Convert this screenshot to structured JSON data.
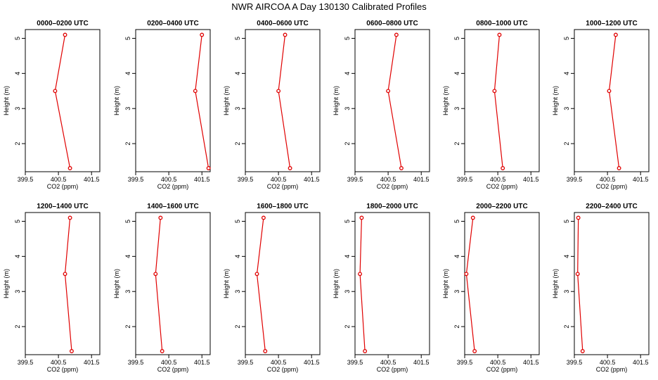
{
  "figure": {
    "title": "NWR AIRCOA A  Day 130130  Calibrated Profiles"
  },
  "chart_data": [
    {
      "type": "line",
      "title": "0000–0200 UTC",
      "xlabel": "CO2 (ppm)",
      "ylabel": "Height (m)",
      "xlim": [
        399.5,
        401.75
      ],
      "ylim": [
        1.2,
        5.25
      ],
      "x_ticks": [
        399.5,
        400.5,
        401.5
      ],
      "y_ticks": [
        2,
        3,
        4,
        5
      ],
      "heights": [
        1.3,
        3.5,
        5.1
      ],
      "values": [
        400.85,
        400.4,
        400.7
      ]
    },
    {
      "type": "line",
      "title": "0200–0400 UTC",
      "xlabel": "CO2 (ppm)",
      "ylabel": "Height (m)",
      "xlim": [
        399.5,
        401.75
      ],
      "ylim": [
        1.2,
        5.25
      ],
      "x_ticks": [
        399.5,
        400.5,
        401.5
      ],
      "y_ticks": [
        2,
        3,
        4,
        5
      ],
      "heights": [
        1.3,
        3.5,
        5.1
      ],
      "values": [
        401.7,
        401.3,
        401.5
      ]
    },
    {
      "type": "line",
      "title": "0400–0600 UTC",
      "xlabel": "CO2 (ppm)",
      "ylabel": "Height (m)",
      "xlim": [
        399.5,
        401.75
      ],
      "ylim": [
        1.2,
        5.25
      ],
      "x_ticks": [
        399.5,
        400.5,
        401.5
      ],
      "y_ticks": [
        2,
        3,
        4,
        5
      ],
      "heights": [
        1.3,
        3.5,
        5.1
      ],
      "values": [
        400.85,
        400.5,
        400.7
      ]
    },
    {
      "type": "line",
      "title": "0600–0800 UTC",
      "xlabel": "CO2 (ppm)",
      "ylabel": "Height (m)",
      "xlim": [
        399.5,
        401.75
      ],
      "ylim": [
        1.2,
        5.25
      ],
      "x_ticks": [
        399.5,
        400.5,
        401.5
      ],
      "y_ticks": [
        2,
        3,
        4,
        5
      ],
      "heights": [
        1.3,
        3.5,
        5.1
      ],
      "values": [
        400.9,
        400.5,
        400.75
      ]
    },
    {
      "type": "line",
      "title": "0800–1000 UTC",
      "xlabel": "CO2 (ppm)",
      "ylabel": "Height (m)",
      "xlim": [
        399.5,
        401.75
      ],
      "ylim": [
        1.2,
        5.25
      ],
      "x_ticks": [
        399.5,
        400.5,
        401.5
      ],
      "y_ticks": [
        2,
        3,
        4,
        5
      ],
      "heights": [
        1.3,
        3.5,
        5.1
      ],
      "values": [
        400.65,
        400.4,
        400.55
      ]
    },
    {
      "type": "line",
      "title": "1000–1200 UTC",
      "xlabel": "CO2 (ppm)",
      "ylabel": "Height (m)",
      "xlim": [
        399.5,
        401.75
      ],
      "ylim": [
        1.2,
        5.25
      ],
      "x_ticks": [
        399.5,
        400.5,
        401.5
      ],
      "y_ticks": [
        2,
        3,
        4,
        5
      ],
      "heights": [
        1.3,
        3.5,
        5.1
      ],
      "values": [
        400.85,
        400.55,
        400.75
      ]
    },
    {
      "type": "line",
      "title": "1200–1400 UTC",
      "xlabel": "CO2 (ppm)",
      "ylabel": "Height (m)",
      "xlim": [
        399.5,
        401.75
      ],
      "ylim": [
        1.2,
        5.25
      ],
      "x_ticks": [
        399.5,
        400.5,
        401.5
      ],
      "y_ticks": [
        2,
        3,
        4,
        5
      ],
      "heights": [
        1.3,
        3.5,
        5.1
      ],
      "values": [
        400.9,
        400.7,
        400.85
      ]
    },
    {
      "type": "line",
      "title": "1400–1600 UTC",
      "xlabel": "CO2 (ppm)",
      "ylabel": "Height (m)",
      "xlim": [
        399.5,
        401.75
      ],
      "ylim": [
        1.2,
        5.25
      ],
      "x_ticks": [
        399.5,
        400.5,
        401.5
      ],
      "y_ticks": [
        2,
        3,
        4,
        5
      ],
      "heights": [
        1.3,
        3.5,
        5.1
      ],
      "values": [
        400.3,
        400.1,
        400.25
      ]
    },
    {
      "type": "line",
      "title": "1600–1800 UTC",
      "xlabel": "CO2 (ppm)",
      "ylabel": "Height (m)",
      "xlim": [
        399.5,
        401.75
      ],
      "ylim": [
        1.2,
        5.25
      ],
      "x_ticks": [
        399.5,
        400.5,
        401.5
      ],
      "y_ticks": [
        2,
        3,
        4,
        5
      ],
      "heights": [
        1.3,
        3.5,
        5.1
      ],
      "values": [
        400.1,
        399.85,
        400.05
      ]
    },
    {
      "type": "line",
      "title": "1800–2000 UTC",
      "xlabel": "CO2 (ppm)",
      "ylabel": "Height (m)",
      "xlim": [
        399.5,
        401.75
      ],
      "ylim": [
        1.2,
        5.25
      ],
      "x_ticks": [
        399.5,
        400.5,
        401.5
      ],
      "y_ticks": [
        2,
        3,
        4,
        5
      ],
      "heights": [
        1.3,
        3.5,
        5.1
      ],
      "values": [
        399.8,
        399.65,
        399.7
      ]
    },
    {
      "type": "line",
      "title": "2000–2200 UTC",
      "xlabel": "CO2 (ppm)",
      "ylabel": "Height (m)",
      "xlim": [
        399.5,
        401.75
      ],
      "ylim": [
        1.2,
        5.25
      ],
      "x_ticks": [
        399.5,
        400.5,
        401.5
      ],
      "y_ticks": [
        2,
        3,
        4,
        5
      ],
      "heights": [
        1.3,
        3.5,
        5.1
      ],
      "values": [
        399.8,
        399.55,
        399.75
      ]
    },
    {
      "type": "line",
      "title": "2200–2400 UTC",
      "xlabel": "CO2 (ppm)",
      "ylabel": "Height (m)",
      "xlim": [
        399.5,
        401.75
      ],
      "ylim": [
        1.2,
        5.25
      ],
      "x_ticks": [
        399.5,
        400.5,
        401.5
      ],
      "y_ticks": [
        2,
        3,
        4,
        5
      ],
      "heights": [
        1.3,
        3.5,
        5.1
      ],
      "values": [
        399.75,
        399.6,
        399.62
      ]
    }
  ]
}
